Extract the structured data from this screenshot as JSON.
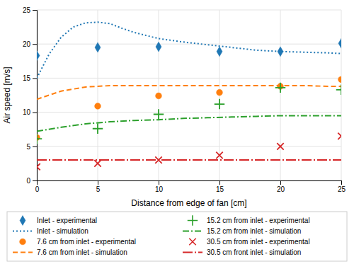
{
  "chart_data": {
    "type": "line",
    "xlabel": "Distance from edge of fan [cm]",
    "ylabel": "Air speed [m/s]",
    "xlim": [
      0,
      25
    ],
    "ylim": [
      0,
      25
    ],
    "xticks": [
      0,
      5,
      10,
      15,
      20,
      25
    ],
    "yticks": [
      0,
      5,
      10,
      15,
      20,
      25
    ],
    "grid": true,
    "legend": "bottom",
    "series": [
      {
        "name": "Inlet - experimental",
        "type": "scatter",
        "marker": "diamond",
        "x": [
          0,
          5,
          10,
          15,
          20,
          25
        ],
        "values": [
          18.3,
          19.5,
          19.6,
          18.9,
          18.9,
          20.1
        ]
      },
      {
        "name": "Inlet - simulation",
        "type": "line",
        "line_style": "dotted",
        "x": [
          0,
          1,
          2,
          3,
          4,
          5,
          6,
          7,
          8,
          10,
          12,
          14,
          16,
          18,
          20,
          22,
          24,
          25
        ],
        "values": [
          15.0,
          18.5,
          21.0,
          22.5,
          23.1,
          23.2,
          23.0,
          22.3,
          21.7,
          20.8,
          20.3,
          19.9,
          19.5,
          19.1,
          18.9,
          18.8,
          18.7,
          18.6
        ]
      },
      {
        "name": "7.6 cm from inlet - experimental",
        "type": "scatter",
        "marker": "circle",
        "x": [
          0,
          5,
          10,
          15,
          20,
          25
        ],
        "values": [
          6.3,
          10.9,
          12.4,
          12.9,
          13.8,
          14.8
        ]
      },
      {
        "name": "7.6 cm from inlet - simulation",
        "type": "line",
        "line_style": "dashed",
        "x": [
          0,
          2,
          4,
          6,
          8,
          10,
          12,
          14,
          16,
          18,
          20,
          22,
          24,
          25
        ],
        "values": [
          11.9,
          13.1,
          13.7,
          13.9,
          13.9,
          13.9,
          13.9,
          13.9,
          13.9,
          13.9,
          13.9,
          13.9,
          13.8,
          13.8
        ]
      },
      {
        "name": "15.2 cm from inlet - experimental",
        "type": "scatter",
        "marker": "plus",
        "x": [
          0,
          5,
          10,
          15,
          20,
          25
        ],
        "values": [
          6.1,
          7.6,
          9.7,
          11.2,
          13.6,
          13.3
        ]
      },
      {
        "name": "15.2 cm from inlet - simulation",
        "type": "line",
        "line_style": "dashdot",
        "x": [
          0,
          2,
          4,
          6,
          8,
          10,
          12,
          14,
          16,
          18,
          20,
          22,
          24,
          25
        ],
        "values": [
          7.2,
          7.8,
          8.3,
          8.6,
          8.8,
          8.9,
          9.1,
          9.2,
          9.3,
          9.4,
          9.5,
          9.5,
          9.5,
          9.5
        ]
      },
      {
        "name": "30.5 cm from inlet - experimental",
        "type": "scatter",
        "marker": "x",
        "x": [
          0,
          5,
          10,
          15,
          20,
          25
        ],
        "values": [
          2.0,
          2.5,
          3.0,
          3.7,
          5.0,
          6.5
        ]
      },
      {
        "name": "30.5 cm front inlet - simulation",
        "type": "line",
        "line_style": "longdashdot",
        "x": [
          0,
          2,
          4,
          6,
          8,
          10,
          12,
          14,
          16,
          18,
          20,
          22,
          24,
          25
        ],
        "values": [
          3.0,
          3.0,
          3.0,
          3.0,
          3.0,
          3.0,
          3.0,
          3.0,
          3.0,
          3.0,
          3.0,
          3.0,
          3.0,
          3.0
        ]
      }
    ]
  }
}
